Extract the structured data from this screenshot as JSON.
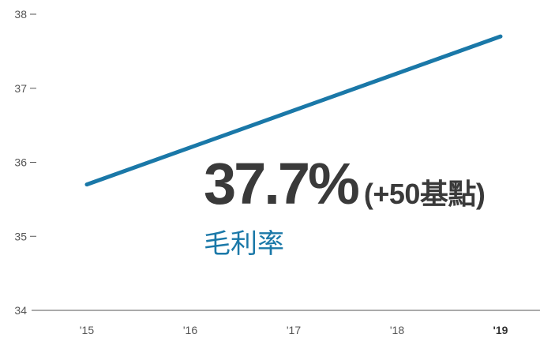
{
  "chart_data": {
    "type": "line",
    "categories": [
      "'15",
      "'16",
      "'17",
      "'18",
      "'19"
    ],
    "highlighted_category": "'19",
    "series": [
      {
        "values": [
          35.7,
          36.2,
          36.7,
          37.2,
          37.7
        ]
      }
    ],
    "ylim": [
      34,
      38
    ],
    "yticks": [
      "34",
      "35",
      "36",
      "37",
      "38"
    ],
    "ytick_values": [
      34,
      35,
      36,
      37,
      38
    ],
    "grid": false,
    "line_color": "#1a78a8",
    "axis_color": "#555555"
  },
  "callout": {
    "value": "37.7%",
    "change": "(+50基點)",
    "metric_label": "毛利率",
    "value_color": "#3a3a3a",
    "label_color": "#1a78a8"
  }
}
